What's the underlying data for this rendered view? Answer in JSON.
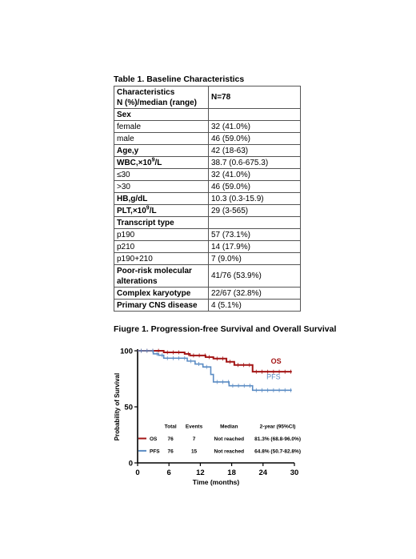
{
  "table": {
    "title": "Table 1. Baseline Characteristics",
    "header": {
      "col1_line1": "Characteristics",
      "col1_line2": "N (%)/median (range)",
      "col2": "N=78"
    },
    "rows": [
      {
        "label": "Sex",
        "value": "",
        "bold": true
      },
      {
        "label": "female",
        "value": "32 (41.0%)",
        "bold": false
      },
      {
        "label": "male",
        "value": "46 (59.0%)",
        "bold": false
      },
      {
        "label": "Age,y",
        "value": "42 (18-63)",
        "bold": true
      },
      {
        "label": "WBC,×10",
        "sup": "9",
        "suffix": "/L",
        "value": "38.7 (0.6-675.3)",
        "bold": true
      },
      {
        "label": "≤30",
        "value": "32 (41.0%)",
        "bold": false
      },
      {
        "label": ">30",
        "value": "46 (59.0%)",
        "bold": false
      },
      {
        "label": "HB,g/dL",
        "value": "10.3 (0.3-15.9)",
        "bold": true
      },
      {
        "label": "PLT,×10",
        "sup": "9",
        "suffix": "/L",
        "value": "29 (3-565)",
        "bold": true
      },
      {
        "label": "Transcript type",
        "value": "",
        "bold": true
      },
      {
        "label": "p190",
        "value": "57 (73.1%)",
        "bold": false
      },
      {
        "label": "p210",
        "value": "14 (17.9%)",
        "bold": false
      },
      {
        "label": "p190+210",
        "value": "7 (9.0%)",
        "bold": false
      },
      {
        "label": "Poor-risk molecular alterations",
        "value": "41/76 (53.9%)",
        "bold": true,
        "tall": true
      },
      {
        "label": "Complex karyotype",
        "value": "22/67 (32.8%)",
        "bold": true
      },
      {
        "label": "Primary CNS disease",
        "value": "4 (5.1%)",
        "bold": true
      }
    ]
  },
  "figure": {
    "title": "Fiugre 1. Progression-free Survival and Overall Survival"
  },
  "chart_data": {
    "type": "line",
    "xlabel": "Time  (months)",
    "ylabel": "Probability of Survival",
    "xlim": [
      0,
      30
    ],
    "ylim": [
      0,
      100
    ],
    "xticks": [
      0,
      6,
      12,
      18,
      24,
      30
    ],
    "yticks": [
      0,
      50,
      100
    ],
    "colors": {
      "OS": "#a31515",
      "PFS": "#5b8cc4"
    },
    "series": [
      {
        "name": "OS",
        "x": [
          0,
          5,
          9,
          10,
          13,
          14.5,
          17,
          18.5,
          22,
          29.5
        ],
        "y": [
          100,
          98.6,
          97.2,
          95.8,
          94.4,
          93.0,
          90.2,
          87.3,
          81.3,
          81.3
        ]
      },
      {
        "name": "PFS",
        "x": [
          0,
          3,
          4,
          5,
          9.5,
          11,
          12.5,
          14,
          14.5,
          17.5,
          22,
          29.5
        ],
        "y": [
          100,
          97.3,
          96.0,
          93.4,
          90.8,
          88.2,
          85.6,
          78.9,
          72.2,
          68.8,
          64.8,
          64.8
        ]
      }
    ],
    "legend_table": {
      "headers": [
        "Total",
        "Events",
        "Median",
        "2-year (95%CI)"
      ],
      "rows": [
        {
          "name": "OS",
          "total": "76",
          "events": "7",
          "median": "Not reached",
          "ci": "81.3% (68.8-96.0%)"
        },
        {
          "name": "PFS",
          "total": "76",
          "events": "15",
          "median": "Not reached",
          "ci": "64.8% (50.7-82.8%)"
        }
      ]
    }
  }
}
